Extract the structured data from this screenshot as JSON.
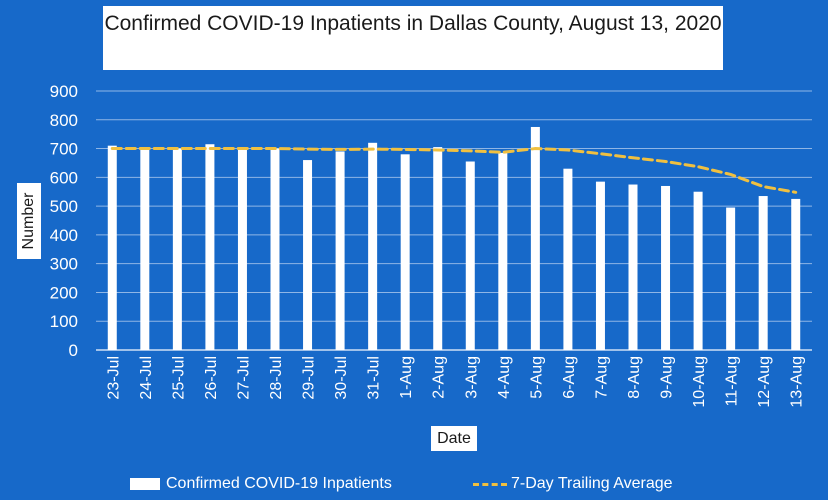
{
  "chart_data": {
    "type": "bar",
    "title": "Confirmed COVID-19 Inpatients in Dallas County, August 13, 2020",
    "xlabel": "Date",
    "ylabel": "Number",
    "ylim": [
      0,
      900
    ],
    "yticks": [
      0,
      100,
      200,
      300,
      400,
      500,
      600,
      700,
      800,
      900
    ],
    "grid": true,
    "legend_position": "bottom",
    "categories": [
      "23-Jul",
      "24-Jul",
      "25-Jul",
      "26-Jul",
      "27-Jul",
      "28-Jul",
      "29-Jul",
      "30-Jul",
      "31-Jul",
      "1-Aug",
      "2-Aug",
      "3-Aug",
      "4-Aug",
      "5-Aug",
      "6-Aug",
      "7-Aug",
      "8-Aug",
      "9-Aug",
      "10-Aug",
      "11-Aug",
      "12-Aug",
      "13-Aug"
    ],
    "series": [
      {
        "name": "Confirmed COVID-19 Inpatients",
        "kind": "bar",
        "color": "#ffffff",
        "values": [
          710,
          705,
          700,
          715,
          700,
          700,
          660,
          690,
          720,
          680,
          705,
          655,
          685,
          775,
          630,
          585,
          575,
          570,
          550,
          495,
          535,
          525
        ]
      },
      {
        "name": "7-Day Trailing Average",
        "kind": "line",
        "color": "#f0c040",
        "style": "dashed",
        "values": [
          700,
          700,
          700,
          700,
          700,
          700,
          698,
          697,
          698,
          697,
          695,
          692,
          687,
          700,
          695,
          682,
          668,
          655,
          637,
          610,
          568,
          548
        ]
      }
    ]
  },
  "colors": {
    "background": "#1769c9",
    "grid": "#8fb6e6",
    "axis": "#cfe0f5"
  }
}
